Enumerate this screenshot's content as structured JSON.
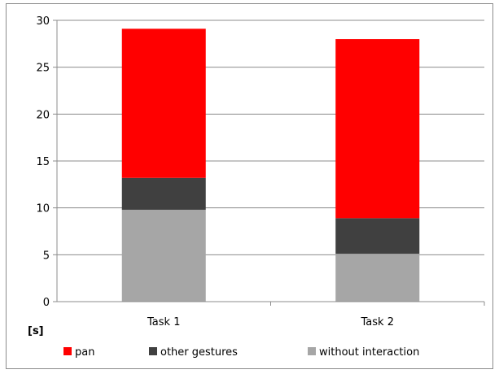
{
  "chart_data": {
    "type": "bar",
    "stacked": true,
    "categories": [
      "Task 1",
      "Task 2"
    ],
    "series": [
      {
        "name": "without interaction",
        "values": [
          9.8,
          5.1
        ],
        "color": "#a6a6a6"
      },
      {
        "name": "other gestures",
        "values": [
          3.4,
          3.8
        ],
        "color": "#404040"
      },
      {
        "name": "pan",
        "values": [
          15.9,
          19.1
        ],
        "color": "#ff0000"
      }
    ],
    "ylim": [
      0,
      30
    ],
    "yticks": [
      0,
      5,
      10,
      15,
      20,
      25,
      30
    ],
    "ylabel": "[s]",
    "xlabel": "",
    "title": "",
    "grid": true,
    "legend": {
      "position": "bottom",
      "order": [
        "pan",
        "other gestures",
        "without interaction"
      ]
    }
  }
}
